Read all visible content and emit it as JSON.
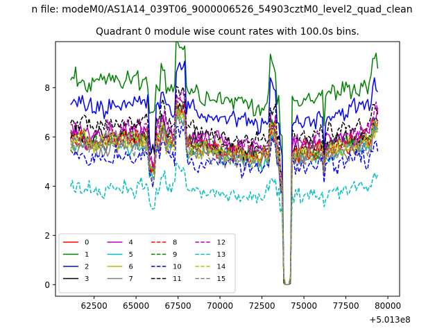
{
  "figure_title": "n file: modeM0/AS1A14_039T06_9000006526_54903cztM0_level2_quad_clean",
  "chart_data": {
    "type": "line",
    "title": "Quadrant 0 module wise count rates with 100.0s bins.",
    "xlabel": "",
    "ylabel": "",
    "x_offset_label": "+5.013e8",
    "xlim": [
      60200,
      80700
    ],
    "ylim": [
      -0.47,
      9.87
    ],
    "xticks": [
      62500,
      65000,
      67500,
      70000,
      72500,
      75000,
      77500,
      80000
    ],
    "xtick_labels": [
      "62500",
      "65000",
      "67500",
      "70000",
      "72500",
      "75000",
      "77500",
      "80000"
    ],
    "yticks": [
      0,
      2,
      4,
      6,
      8
    ],
    "ytick_labels": [
      "0",
      "2",
      "4",
      "6",
      "8"
    ],
    "x_start": 61100,
    "x_step": 100,
    "n_points": 184,
    "gap": {
      "from": 73900,
      "to": 74100
    },
    "grid": false,
    "legend_position": "lower-left",
    "legend_columns": 4,
    "series": [
      {
        "name": "0",
        "color": "#ff0000",
        "dash": "solid",
        "mean": 5.55,
        "noise": 0.35
      },
      {
        "name": "1",
        "color": "#008000",
        "dash": "solid",
        "mean": 7.8,
        "noise": 0.4
      },
      {
        "name": "2",
        "color": "#0000ff",
        "dash": "solid",
        "mean": 6.95,
        "noise": 0.35
      },
      {
        "name": "3",
        "color": "#000000",
        "dash": "solid",
        "mean": 5.75,
        "noise": 0.3
      },
      {
        "name": "4",
        "color": "#bf00bf",
        "dash": "solid",
        "mean": 5.85,
        "noise": 0.35
      },
      {
        "name": "5",
        "color": "#00bfbf",
        "dash": "solid",
        "mean": 5.35,
        "noise": 0.3
      },
      {
        "name": "6",
        "color": "#bfbf00",
        "dash": "solid",
        "mean": 5.5,
        "noise": 0.35
      },
      {
        "name": "7",
        "color": "#808080",
        "dash": "solid",
        "mean": 5.4,
        "noise": 0.35
      },
      {
        "name": "8",
        "color": "#ff0000",
        "dash": "dashed",
        "mean": 5.6,
        "noise": 0.35
      },
      {
        "name": "9",
        "color": "#008000",
        "dash": "dashed",
        "mean": 5.7,
        "noise": 0.3
      },
      {
        "name": "10",
        "color": "#0000ff",
        "dash": "dashed",
        "mean": 5.0,
        "noise": 0.35
      },
      {
        "name": "11",
        "color": "#000000",
        "dash": "dashed",
        "mean": 6.25,
        "noise": 0.3
      },
      {
        "name": "12",
        "color": "#bf00bf",
        "dash": "dashed",
        "mean": 5.95,
        "noise": 0.35
      },
      {
        "name": "13",
        "color": "#00bfbf",
        "dash": "dashed",
        "mean": 3.75,
        "noise": 0.3
      },
      {
        "name": "14",
        "color": "#bfbf00",
        "dash": "dashed",
        "mean": 5.55,
        "noise": 0.35
      },
      {
        "name": "15",
        "color": "#808080",
        "dash": "dashed",
        "mean": 5.45,
        "noise": 0.35
      }
    ]
  }
}
